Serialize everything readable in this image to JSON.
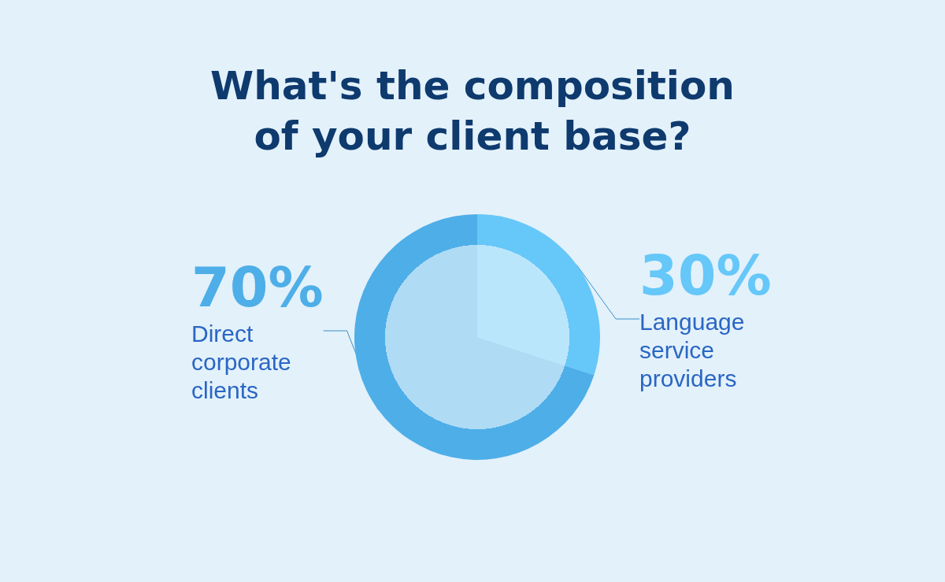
{
  "chart_data": {
    "type": "pie",
    "title": "What's the composition\nof your client base?",
    "categories": [
      "Language service providers",
      "Direct corporate clients"
    ],
    "values": [
      30,
      70
    ],
    "colors": [
      "#66c7f9",
      "#4eaee8"
    ],
    "value_labels": [
      "30%",
      "70%"
    ],
    "legend": false
  }
}
